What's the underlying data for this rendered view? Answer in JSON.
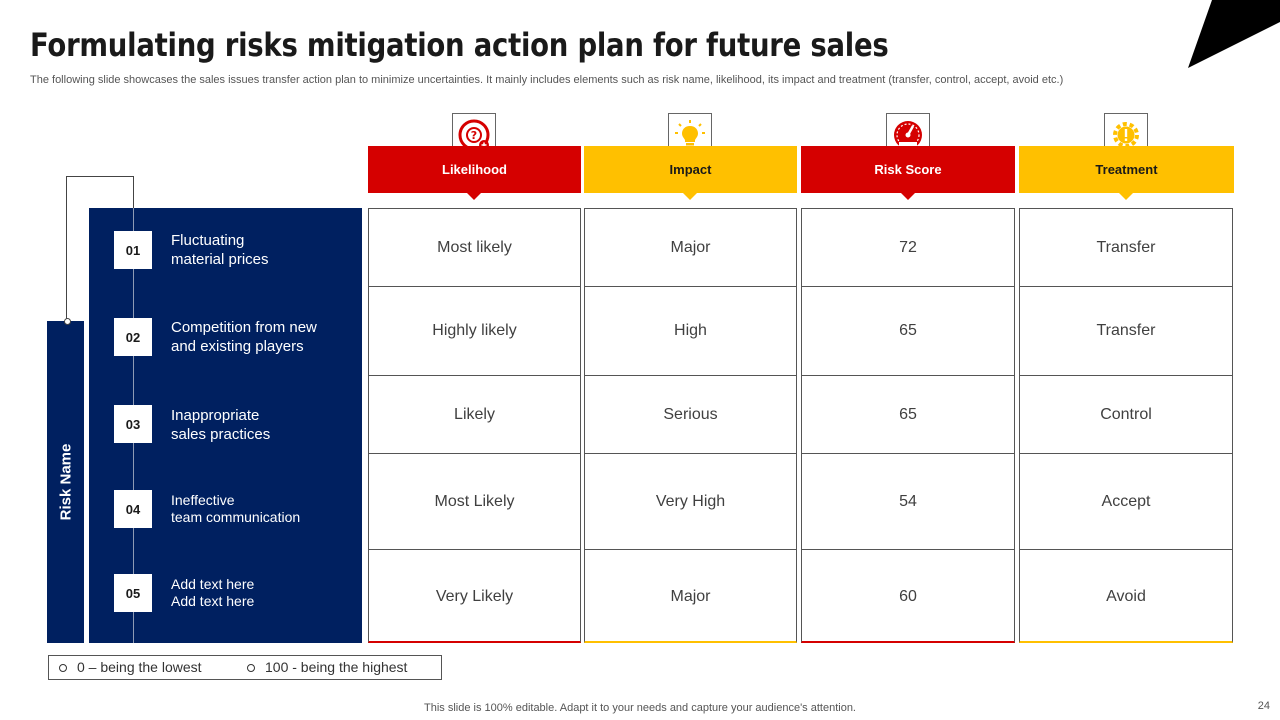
{
  "slide": {
    "title": "Formulating risks mitigation action plan for future sales",
    "subtitle": "The following slide showcases the sales issues transfer action plan to minimize uncertainties. It mainly includes elements such as risk name, likelihood, its impact and treatment (transfer, control, accept, avoid etc.)",
    "risk_name_label": "Risk Name",
    "footer": "This slide is 100% editable. Adapt it to your needs and capture your audience's attention.",
    "page_number": "24"
  },
  "colors": {
    "navy": "#002060",
    "red": "#d50000",
    "yellow": "#ffc000"
  },
  "columns": [
    {
      "label": "Likelihood",
      "icon": "question-lifebuoy-icon",
      "color": "#d50000"
    },
    {
      "label": "Impact",
      "icon": "lightbulb-icon",
      "color": "#ffc000"
    },
    {
      "label": "Risk Score",
      "icon": "gauge-icon",
      "color": "#d50000"
    },
    {
      "label": "Treatment",
      "icon": "gear-warning-icon",
      "color": "#ffc000"
    }
  ],
  "risks": [
    {
      "num": "01",
      "line1": "Fluctuating",
      "line2": "material prices",
      "likelihood": "Most likely",
      "impact": "Major",
      "score": "72",
      "treatment": "Transfer"
    },
    {
      "num": "02",
      "line1": "Competition from new",
      "line2": "and existing players",
      "likelihood": "Highly likely",
      "impact": "High",
      "score": "65",
      "treatment": "Transfer"
    },
    {
      "num": "03",
      "line1": "Inappropriate",
      "line2": "sales practices",
      "likelihood": "Likely",
      "impact": "Serious",
      "score": "65",
      "treatment": "Control"
    },
    {
      "num": "04",
      "line1": "Ineffective",
      "line2": "team communication",
      "likelihood": "Most Likely",
      "impact": "Very High",
      "score": "54",
      "treatment": "Accept"
    },
    {
      "num": "05",
      "line1": "Add text here",
      "line2": "Add text here",
      "likelihood": "Very Likely",
      "impact": "Major",
      "score": "60",
      "treatment": "Avoid"
    }
  ],
  "legend": {
    "low": "0 – being the lowest",
    "high": "100 - being the highest"
  }
}
